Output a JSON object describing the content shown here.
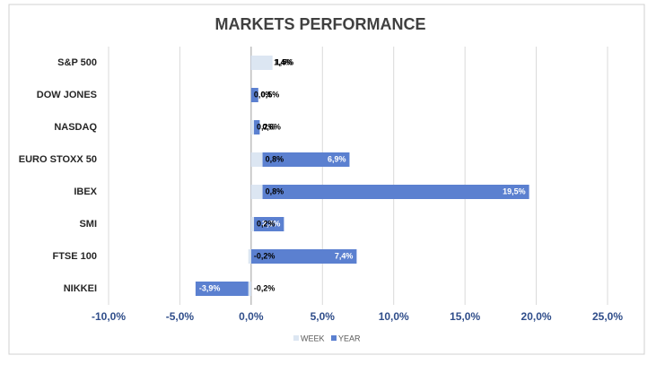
{
  "chart_data": {
    "type": "hbar",
    "title": "MARKETS PERFORMANCE",
    "categories": [
      "S&P 500",
      "DOW JONES",
      "NASDAQ",
      "EURO STOXX 50",
      "IBEX",
      "SMI",
      "FTSE 100",
      "NIKKEI"
    ],
    "series": [
      {
        "name": "WEEK",
        "color": "#dce6f2",
        "values": [
          1.5,
          0.0,
          0.2,
          0.8,
          0.8,
          0.2,
          -0.2,
          -0.2
        ],
        "value_labels": [
          "1,5%",
          "0,0%",
          "0,2%",
          "0,8%",
          "0,8%",
          "0,2%",
          "-0,2%",
          "-0,2%"
        ]
      },
      {
        "name": "YEAR",
        "color": "#5b80d0",
        "values": [
          1.4,
          0.5,
          0.6,
          6.9,
          19.5,
          2.3,
          7.4,
          -3.9
        ],
        "value_labels": [
          "1,4%",
          "0,5%",
          "0,6%",
          "6,9%",
          "19,5%",
          "2,3%",
          "7,4%",
          "-3,9%"
        ]
      }
    ],
    "xlim": [
      -10,
      25
    ],
    "xticks": [
      {
        "value": -10,
        "label": "-10,0%"
      },
      {
        "value": -5,
        "label": "-5,0%"
      },
      {
        "value": 0,
        "label": "0,0%"
      },
      {
        "value": 5,
        "label": "5,0%"
      },
      {
        "value": 10,
        "label": "10,0%"
      },
      {
        "value": 15,
        "label": "15,0%"
      },
      {
        "value": 20,
        "label": "20,0%"
      },
      {
        "value": 25,
        "label": "25,0%"
      }
    ],
    "grid": true
  }
}
